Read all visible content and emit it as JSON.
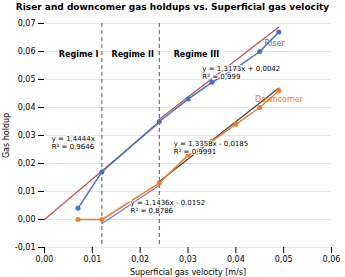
{
  "chart_data": {
    "type": "line",
    "title": "Riser and downcomer gas holdups vs. Superficial gas velocity",
    "xlabel": "Superficial gas velocity [m/s]",
    "ylabel": "Gas holdup",
    "xlim": [
      0,
      0.06
    ],
    "ylim": [
      -0.01,
      0.07
    ],
    "xticks": [
      {
        "value": 0,
        "label": "0,00"
      },
      {
        "value": 0.01,
        "label": "0,01"
      },
      {
        "value": 0.02,
        "label": "0,02"
      },
      {
        "value": 0.03,
        "label": "0,03"
      },
      {
        "value": 0.04,
        "label": "0,04"
      },
      {
        "value": 0.05,
        "label": "0,05"
      },
      {
        "value": 0.06,
        "label": "0,06"
      }
    ],
    "yticks": [
      {
        "value": -0.01,
        "label": "-0,01"
      },
      {
        "value": 0,
        "label": "0,00"
      },
      {
        "value": 0.01,
        "label": "0,01"
      },
      {
        "value": 0.02,
        "label": "0,02"
      },
      {
        "value": 0.03,
        "label": "0,03"
      },
      {
        "value": 0.04,
        "label": "0,04"
      },
      {
        "value": 0.05,
        "label": "0,05"
      },
      {
        "value": 0.06,
        "label": "0,06"
      },
      {
        "value": 0.07,
        "label": "0,07"
      }
    ],
    "grid": "y",
    "series": [
      {
        "name": "Riser",
        "color": "#4472C4",
        "marker": "circle",
        "x": [
          0.007,
          0.012,
          0.024,
          0.03,
          0.035,
          0.04,
          0.045,
          0.049
        ],
        "values": [
          0.004,
          0.017,
          0.035,
          0.043,
          0.049,
          0.054,
          0.06,
          0.067
        ],
        "label_x": 0.046,
        "label_y": 0.063
      },
      {
        "name": "Downcomer",
        "color": "#ED7D31",
        "marker": "circle",
        "x": [
          0.007,
          0.012,
          0.024,
          0.03,
          0.035,
          0.04,
          0.045,
          0.049
        ],
        "values": [
          0.0,
          0.0,
          0.013,
          0.023,
          0.028,
          0.034,
          0.04,
          0.046
        ],
        "label_x": 0.044,
        "label_y": 0.043
      }
    ],
    "trendlines": [
      {
        "color": "#C0504D",
        "x": [
          0.0,
          0.024
        ],
        "values": [
          0.0,
          0.0346656
        ]
      },
      {
        "color": "#C0504D",
        "x": [
          0.024,
          0.049
        ],
        "values": [
          0.0358152,
          0.0687477
        ]
      },
      {
        "color": "#404040",
        "x": [
          0.024,
          0.049
        ],
        "values": [
          0.0135592,
          0.0469542
        ]
      },
      {
        "color": "#7B7BC8",
        "x": [
          0.012,
          0.024
        ],
        "values": [
          -0.0014768,
          0.0122464
        ]
      }
    ],
    "vlines": [
      {
        "x": 0.012,
        "color": "#555555",
        "line_style": "dashed"
      },
      {
        "x": 0.024,
        "color": "#555555",
        "line_style": "dashed"
      }
    ],
    "regime_labels": [
      {
        "text": "Regime I",
        "x": 0.003,
        "y": 0.06
      },
      {
        "text": "Regime II",
        "x": 0.014,
        "y": 0.06
      },
      {
        "text": "Regime III",
        "x": 0.027,
        "y": 0.06
      }
    ],
    "annotations": [
      {
        "text": "y = 1,4444x\nR² = 0,9646",
        "x": 0.0015,
        "y": 0.029
      },
      {
        "text": "y = 1,3173x + 0,0042\nR² = 0,999",
        "x": 0.033,
        "y": 0.054
      },
      {
        "text": "y = 1,3358x - 0,0185\nR² = 0,9991",
        "x": 0.027,
        "y": 0.027
      },
      {
        "text": "y = 1,1436x - 0,0152\nR² = 0,8786",
        "x": 0.018,
        "y": 0.006
      }
    ]
  }
}
